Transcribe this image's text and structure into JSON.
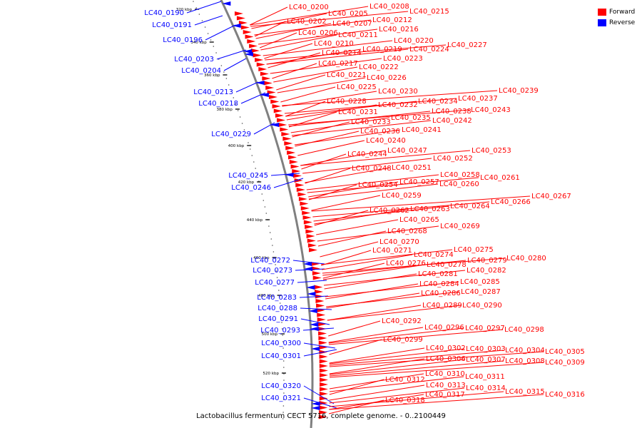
{
  "legend": {
    "forward": "Forward",
    "reverse": "Reverse"
  },
  "caption": "Lactobacillus fermentum CECT 5716, complete genome. - 0..2100449",
  "colors": {
    "forward": "#ff0000",
    "reverse": "#0000ff",
    "backbone": "#808080"
  },
  "ticks": [
    "320 kbp",
    "340 kbp",
    "360 kbp",
    "380 kbp",
    "400 kbp",
    "420 kbp",
    "440 kbp",
    "460 kbp",
    "480 kbp",
    "500 kbp",
    "520 kbp"
  ],
  "reverse_labels": [
    "LC40_0190",
    "LC40_0191",
    "LC40_0196",
    "LC40_0203",
    "LC40_0204",
    "LC40_0213",
    "LC40_0218",
    "LC40_0229",
    "LC40_0245",
    "LC40_0246",
    "LC40_0272",
    "LC40_0273",
    "LC40_0277",
    "LC40_0283",
    "LC40_0288",
    "LC40_0291",
    "LC40_0293",
    "LC40_0300",
    "LC40_0301",
    "LC40_0320",
    "LC40_0321"
  ],
  "forward_labels": [
    "LC40_0200",
    "LC40_0205",
    "LC40_0208",
    "LC40_0215",
    "LC40_0202",
    "LC40_0207",
    "LC40_0212",
    "LC40_0206",
    "LC40_0211",
    "LC40_0216",
    "LC40_0210",
    "LC40_0220",
    "LC40_0227",
    "LC40_0214",
    "LC40_0219",
    "LC40_0224",
    "LC40_0223",
    "LC40_0217",
    "LC40_0222",
    "LC40_0221",
    "LC40_0226",
    "LC40_0225",
    "LC40_0230",
    "LC40_0239",
    "LC40_0228",
    "LC40_0234",
    "LC40_0237",
    "LC40_0232",
    "LC40_0231",
    "LC40_0238",
    "LC40_0243",
    "LC40_0235",
    "LC40_0233",
    "LC40_0242",
    "LC40_0236",
    "LC40_0241",
    "LC40_0240",
    "LC40_0247",
    "LC40_0253",
    "LC40_0244",
    "LC40_0252",
    "LC40_0248",
    "LC40_0251",
    "LC40_0258",
    "LC40_0261",
    "LC40_0257",
    "LC40_0260",
    "LC40_0254",
    "LC40_0259",
    "LC40_0267",
    "LC40_0264",
    "LC40_0266",
    "LC40_0263",
    "LC40_0262",
    "LC40_0265",
    "LC40_0269",
    "LC40_0268",
    "LC40_0270",
    "LC40_0275",
    "LC40_0271",
    "LC40_0274",
    "LC40_0279",
    "LC40_0280",
    "LC40_0276",
    "LC40_0278",
    "LC40_0282",
    "LC40_0281",
    "LC40_0285",
    "LC40_0284",
    "LC40_0287",
    "LC40_0286",
    "LC40_0289",
    "LC40_0290",
    "LC40_0292",
    "LC40_0296",
    "LC40_0297",
    "LC40_0298",
    "LC40_0299",
    "LC40_0302",
    "LC40_0303",
    "LC40_0304",
    "LC40_0305",
    "LC40_0306",
    "LC40_0307",
    "LC40_0308",
    "LC40_0309",
    "LC40_0310",
    "LC40_0311",
    "LC40_0312",
    "LC40_0313",
    "LC40_0314",
    "LC40_0315",
    "LC40_0316",
    "LC40_0317",
    "LC40_0318"
  ]
}
